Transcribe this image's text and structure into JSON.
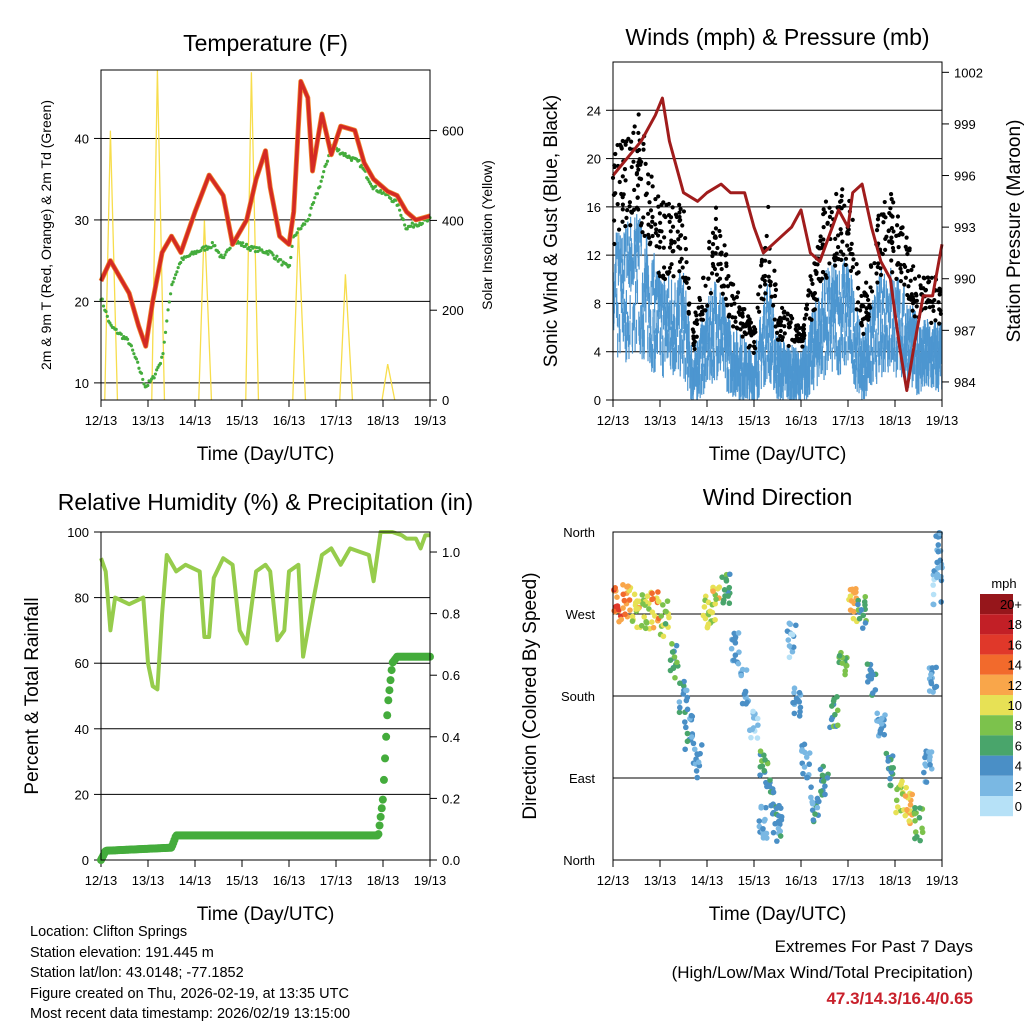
{
  "colors": {
    "temp": "#d42a24",
    "dewpoint": "#44ac3c",
    "solar": "#f7dd4c",
    "pressure": "#a01c1c",
    "wind": "#4d96d0",
    "gust": "#000000",
    "rh": "#96cc4c",
    "precip": "#44ac3c",
    "extremes": "#c8202b"
  },
  "chart_data": [
    {
      "type": "line",
      "title": "Temperature (F)",
      "xlabel": "Time (Day/UTC)",
      "ylabel": "2m & 9m T (Red, Orange) & 2m Td (Green)",
      "ylabel_right": "Solar Insolation (Yellow)",
      "xticks": [
        "12/13",
        "13/13",
        "14/13",
        "15/13",
        "16/13",
        "17/13",
        "18/13",
        "19/13"
      ],
      "xlim": [
        0,
        7
      ],
      "ylim": [
        7.9,
        48.4
      ],
      "yticks": [
        10,
        20,
        30,
        40
      ],
      "ylim_right": [
        0,
        735
      ],
      "yticks_right": [
        0,
        200,
        400,
        600
      ],
      "series": [
        {
          "name": "2m T",
          "color": "temp",
          "points": [
            [
              0,
              22.5
            ],
            [
              0.2,
              25
            ],
            [
              0.4,
              23
            ],
            [
              0.6,
              21
            ],
            [
              0.8,
              17
            ],
            [
              0.95,
              14.5
            ],
            [
              1.1,
              20
            ],
            [
              1.3,
              26
            ],
            [
              1.5,
              28
            ],
            [
              1.7,
              26
            ],
            [
              2.0,
              31
            ],
            [
              2.3,
              35.5
            ],
            [
              2.6,
              33
            ],
            [
              2.8,
              27
            ],
            [
              3.1,
              30
            ],
            [
              3.3,
              35
            ],
            [
              3.5,
              38.5
            ],
            [
              3.6,
              34
            ],
            [
              3.8,
              28
            ],
            [
              4.0,
              27
            ],
            [
              4.1,
              31
            ],
            [
              4.25,
              47
            ],
            [
              4.4,
              45
            ],
            [
              4.5,
              36
            ],
            [
              4.7,
              43
            ],
            [
              4.9,
              38
            ],
            [
              5.1,
              41.5
            ],
            [
              5.4,
              41
            ],
            [
              5.6,
              37
            ],
            [
              5.8,
              35
            ],
            [
              6.1,
              33.5
            ],
            [
              6.3,
              33
            ],
            [
              6.5,
              31
            ],
            [
              6.7,
              30
            ],
            [
              7.0,
              30.5
            ]
          ]
        },
        {
          "name": "2m Td",
          "color": "dewpoint",
          "points": [
            [
              0,
              20.5
            ],
            [
              0.2,
              17
            ],
            [
              0.4,
              16
            ],
            [
              0.6,
              15
            ],
            [
              0.8,
              12
            ],
            [
              0.95,
              9.5
            ],
            [
              1.1,
              10.5
            ],
            [
              1.3,
              13
            ],
            [
              1.5,
              22
            ],
            [
              1.7,
              25
            ],
            [
              2.0,
              26
            ],
            [
              2.4,
              27
            ],
            [
              2.6,
              25
            ],
            [
              2.8,
              27.5
            ],
            [
              3.2,
              26.5
            ],
            [
              3.6,
              26
            ],
            [
              3.9,
              24.5
            ],
            [
              4.0,
              24
            ],
            [
              4.1,
              28
            ],
            [
              4.4,
              30
            ],
            [
              4.7,
              35
            ],
            [
              4.9,
              39
            ],
            [
              5.2,
              38
            ],
            [
              5.5,
              37
            ],
            [
              5.8,
              34
            ],
            [
              6.1,
              33
            ],
            [
              6.3,
              32
            ],
            [
              6.5,
              29
            ],
            [
              6.7,
              29.5
            ],
            [
              7,
              30
            ]
          ]
        },
        {
          "name": "Solar insolation peaks",
          "color": "solar",
          "axis": "right",
          "points": [
            [
              0.2,
              600
            ],
            [
              1.2,
              735
            ],
            [
              2.2,
              400
            ],
            [
              3.2,
              730
            ],
            [
              4.2,
              380
            ],
            [
              5.2,
              280
            ],
            [
              6.1,
              80
            ]
          ]
        }
      ]
    },
    {
      "type": "line",
      "title": "Winds (mph) & Pressure (mb)",
      "xlabel": "Time (Day/UTC)",
      "ylabel": "Sonic Wind & Gust (Blue, Black)",
      "ylabel_right": "Station Pressure (Maroon)",
      "xticks": [
        "12/13",
        "13/13",
        "14/13",
        "15/13",
        "16/13",
        "17/13",
        "18/13",
        "19/13"
      ],
      "xlim": [
        0,
        7
      ],
      "ylim": [
        0,
        28
      ],
      "yticks": [
        0,
        4,
        8,
        12,
        16,
        20,
        24
      ],
      "ylim_right": [
        982.95,
        1002.6
      ],
      "yticks_right": [
        984,
        987,
        990,
        993,
        996,
        999,
        1002
      ],
      "series": [
        {
          "name": "Sonic wind (trend)",
          "color": "wind",
          "points": [
            [
              0,
              10
            ],
            [
              0.5,
              12
            ],
            [
              1,
              8
            ],
            [
              1.5,
              8
            ],
            [
              1.7,
              3
            ],
            [
              2.2,
              8
            ],
            [
              2.5,
              5
            ],
            [
              3.0,
              3
            ],
            [
              3.3,
              8
            ],
            [
              3.5,
              4
            ],
            [
              4.0,
              3
            ],
            [
              4.5,
              8
            ],
            [
              5.0,
              9
            ],
            [
              5.3,
              4
            ],
            [
              5.8,
              9
            ],
            [
              6.2,
              7
            ],
            [
              6.5,
              5
            ],
            [
              7,
              5
            ]
          ]
        },
        {
          "name": "Pressure",
          "color": "pressure",
          "axis": "right",
          "points": [
            [
              0,
              996
            ],
            [
              0.3,
              997
            ],
            [
              0.6,
              998
            ],
            [
              0.9,
              999.5
            ],
            [
              1.05,
              1000.5
            ],
            [
              1.2,
              998
            ],
            [
              1.5,
              995
            ],
            [
              1.8,
              994.5
            ],
            [
              2.0,
              995
            ],
            [
              2.3,
              995.5
            ],
            [
              2.5,
              995
            ],
            [
              2.8,
              995
            ],
            [
              3.0,
              993
            ],
            [
              3.2,
              991.5
            ],
            [
              3.4,
              992
            ],
            [
              3.6,
              992.5
            ],
            [
              3.8,
              993
            ],
            [
              4.0,
              994
            ],
            [
              4.2,
              991.5
            ],
            [
              4.4,
              991
            ],
            [
              4.6,
              992.5
            ],
            [
              4.8,
              994
            ],
            [
              5.0,
              993
            ],
            [
              5.1,
              995
            ],
            [
              5.3,
              995.5
            ],
            [
              5.5,
              993
            ],
            [
              5.7,
              991
            ],
            [
              5.9,
              990
            ],
            [
              6.1,
              986
            ],
            [
              6.25,
              983.5
            ],
            [
              6.4,
              986
            ],
            [
              6.6,
              989
            ],
            [
              6.8,
              989
            ],
            [
              7.0,
              992
            ]
          ]
        }
      ]
    },
    {
      "type": "line",
      "title": "Relative Humidity (%) & Precipitation (in)",
      "xlabel": "Time (Day/UTC)",
      "ylabel": "Percent & Total Rainfall",
      "xticks": [
        "12/13",
        "13/13",
        "14/13",
        "15/13",
        "16/13",
        "17/13",
        "18/13",
        "19/13"
      ],
      "xlim": [
        0,
        7
      ],
      "ylim": [
        0,
        100
      ],
      "yticks": [
        0,
        20,
        40,
        60,
        80,
        100
      ],
      "ylim_right": [
        0,
        1.065
      ],
      "yticks_right": [
        "0.0",
        "0.2",
        "0.4",
        "0.6",
        "0.8",
        "1.0"
      ],
      "series": [
        {
          "name": "RH",
          "color": "rh",
          "points": [
            [
              0,
              92
            ],
            [
              0.1,
              88
            ],
            [
              0.2,
              70
            ],
            [
              0.3,
              80
            ],
            [
              0.6,
              78
            ],
            [
              0.9,
              80
            ],
            [
              1.0,
              60
            ],
            [
              1.1,
              53
            ],
            [
              1.2,
              52
            ],
            [
              1.3,
              75
            ],
            [
              1.4,
              93
            ],
            [
              1.6,
              88
            ],
            [
              1.8,
              90
            ],
            [
              2.1,
              88
            ],
            [
              2.2,
              68
            ],
            [
              2.3,
              68
            ],
            [
              2.4,
              86
            ],
            [
              2.6,
              92
            ],
            [
              2.8,
              90
            ],
            [
              2.95,
              70
            ],
            [
              3.1,
              66
            ],
            [
              3.3,
              88
            ],
            [
              3.5,
              90
            ],
            [
              3.6,
              88
            ],
            [
              3.75,
              67
            ],
            [
              3.9,
              70
            ],
            [
              4.0,
              88
            ],
            [
              4.2,
              90
            ],
            [
              4.3,
              62
            ],
            [
              4.5,
              78
            ],
            [
              4.7,
              93
            ],
            [
              4.9,
              95
            ],
            [
              5.1,
              90
            ],
            [
              5.3,
              95
            ],
            [
              5.5,
              94
            ],
            [
              5.7,
              93
            ],
            [
              5.8,
              85
            ],
            [
              5.95,
              100
            ],
            [
              6.2,
              100
            ],
            [
              6.4,
              99
            ],
            [
              6.5,
              98
            ],
            [
              6.7,
              98
            ],
            [
              6.8,
              95
            ],
            [
              6.9,
              99
            ],
            [
              7,
              99
            ]
          ]
        },
        {
          "name": "Total precipitation",
          "color": "precip",
          "axis": "right",
          "points": [
            [
              0,
              0
            ],
            [
              0.1,
              0.03
            ],
            [
              1.5,
              0.04
            ],
            [
              1.6,
              0.08
            ],
            [
              5.9,
              0.08
            ],
            [
              6.0,
              0.2
            ],
            [
              6.1,
              0.5
            ],
            [
              6.2,
              0.64
            ],
            [
              6.3,
              0.66
            ],
            [
              7,
              0.66
            ]
          ]
        }
      ]
    },
    {
      "type": "scatter",
      "title": "Wind Direction",
      "xlabel": "Time (Day/UTC)",
      "ylabel": "Direction (Colored By Speed)",
      "xticks": [
        "12/13",
        "13/13",
        "14/13",
        "15/13",
        "16/13",
        "17/13",
        "18/13",
        "19/13"
      ],
      "xlim": [
        0,
        7
      ],
      "ylim": [
        0,
        360
      ],
      "yticks": [
        "North",
        "East",
        "South",
        "West",
        "North"
      ],
      "legend": {
        "title": "mph",
        "labels": [
          "20+",
          "18",
          "16",
          "14",
          "12",
          "10",
          "8",
          "6",
          "4",
          "2",
          "0"
        ],
        "colors": [
          "#96161b",
          "#c21f26",
          "#e0382a",
          "#f26a2c",
          "#f9a64a",
          "#e7e155",
          "#7cc24c",
          "#49a56b",
          "#4a8fc6",
          "#7ab8e3",
          "#b6e1f7"
        ],
        "placement": "right"
      },
      "points": [
        [
          0.1,
          280,
          14
        ],
        [
          0.3,
          285,
          12
        ],
        [
          0.5,
          275,
          10
        ],
        [
          0.7,
          272,
          9
        ],
        [
          0.9,
          275,
          12
        ],
        [
          1.1,
          265,
          8
        ],
        [
          1.3,
          220,
          6
        ],
        [
          1.5,
          180,
          4
        ],
        [
          1.6,
          140,
          4
        ],
        [
          1.8,
          110,
          3
        ],
        [
          2.0,
          270,
          9
        ],
        [
          2.2,
          280,
          10
        ],
        [
          2.4,
          300,
          6
        ],
        [
          2.6,
          230,
          3
        ],
        [
          2.8,
          190,
          3
        ],
        [
          3.0,
          150,
          2
        ],
        [
          3.2,
          100,
          6
        ],
        [
          3.4,
          70,
          5
        ],
        [
          3.5,
          40,
          4
        ],
        [
          3.2,
          40,
          3
        ],
        [
          3.8,
          240,
          2
        ],
        [
          3.9,
          170,
          3
        ],
        [
          4.1,
          110,
          3
        ],
        [
          4.3,
          60,
          4
        ],
        [
          4.5,
          90,
          6
        ],
        [
          4.7,
          160,
          6
        ],
        [
          4.9,
          210,
          7
        ],
        [
          5.1,
          280,
          12
        ],
        [
          5.3,
          270,
          6
        ],
        [
          5.5,
          200,
          4
        ],
        [
          5.7,
          150,
          3
        ],
        [
          5.9,
          100,
          5
        ],
        [
          6.1,
          70,
          9
        ],
        [
          6.3,
          60,
          11
        ],
        [
          6.5,
          40,
          7
        ],
        [
          6.7,
          100,
          3
        ],
        [
          6.8,
          200,
          3
        ],
        [
          6.9,
          300,
          2
        ],
        [
          6.95,
          340,
          3
        ]
      ]
    }
  ],
  "info": {
    "location": "Location: Clifton Springs",
    "elevation": "Station elevation: 191.445 m",
    "latlon": "Station lat/lon: 43.0148; -77.1852",
    "created": "Figure created on Thu, 2026-02-19, at 13:35 UTC",
    "recent": "Most recent data timestamp: 2026/02/19 13:15:00"
  },
  "extremes": {
    "title": "Extremes For Past 7 Days",
    "subtitle": "(High/Low/Max Wind/Total Precipitation)",
    "values": "47.3/14.3/16.4/0.65"
  }
}
